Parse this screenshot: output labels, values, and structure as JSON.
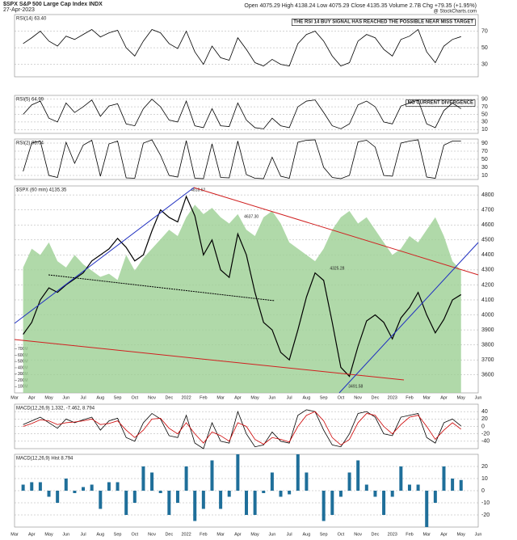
{
  "header": {
    "symbol": "$SPX S&P 500 Large Cap Index INDX",
    "date": "27-Apr-2023",
    "quote": "Open 4075.29 High 4138.24 Low 4075.29 Close 4135.35 Volume 2.7B Chg +79.35 (+1.95%)",
    "watermark": "@ StockCharts.com"
  },
  "x_axis": {
    "labels": [
      "Mar",
      "Apr",
      "May",
      "Jun",
      "Jul",
      "Aug",
      "Sep",
      "Oct",
      "Nov",
      "Dec",
      "2022",
      "Feb",
      "Mar",
      "Apr",
      "May",
      "Jun",
      "Jul",
      "Aug",
      "Sep",
      "Oct",
      "Nov",
      "Dec",
      "2023",
      "Feb",
      "Mar",
      "Apr",
      "May",
      "Jun"
    ]
  },
  "chart_data": [
    {
      "type": "line",
      "title": "RSI(14) 63.40",
      "annotation": "THE RSI 14 BUY SIGNAL HAS REACHED THE POSSIBLE NEAR MISS TARGET",
      "ylim": [
        15,
        90
      ],
      "yticks": [
        30,
        50,
        70
      ],
      "series": [
        {
          "name": "RSI(14)",
          "color": "#000000",
          "values": [
            55,
            62,
            70,
            58,
            52,
            64,
            60,
            66,
            72,
            63,
            68,
            71,
            50,
            40,
            58,
            72,
            68,
            55,
            49,
            70,
            45,
            30,
            52,
            38,
            35,
            62,
            48,
            32,
            28,
            36,
            30,
            28,
            55,
            66,
            70,
            58,
            40,
            28,
            32,
            58,
            66,
            62,
            48,
            40,
            60,
            64,
            72,
            45,
            32,
            52,
            60,
            63.4
          ]
        }
      ]
    },
    {
      "type": "line",
      "title": "RSI(5) 64.99",
      "annotation": "NO CURRENT DIVERGENCE",
      "ylim": [
        0,
        100
      ],
      "yticks": [
        10,
        30,
        50,
        70,
        90
      ],
      "series": [
        {
          "name": "RSI(5)",
          "color": "#000000",
          "values": [
            50,
            75,
            85,
            40,
            30,
            80,
            55,
            70,
            88,
            45,
            72,
            78,
            25,
            20,
            65,
            90,
            70,
            35,
            30,
            85,
            20,
            15,
            65,
            20,
            18,
            80,
            35,
            15,
            12,
            40,
            20,
            15,
            70,
            85,
            88,
            55,
            20,
            12,
            25,
            75,
            85,
            70,
            30,
            25,
            72,
            80,
            88,
            25,
            15,
            60,
            80,
            64.99
          ]
        }
      ]
    },
    {
      "type": "line",
      "title": "RSI(2) 95.04",
      "ylim": [
        0,
        100
      ],
      "yticks": [
        10,
        30,
        50,
        70,
        90
      ],
      "series": [
        {
          "name": "RSI(2)",
          "color": "#000000",
          "values": [
            20,
            90,
            95,
            10,
            5,
            92,
            40,
            85,
            97,
            8,
            88,
            95,
            4,
            3,
            90,
            98,
            60,
            10,
            6,
            96,
            3,
            2,
            88,
            5,
            4,
            95,
            12,
            3,
            2,
            55,
            8,
            3,
            92,
            97,
            98,
            30,
            5,
            2,
            10,
            93,
            97,
            80,
            10,
            8,
            90,
            95,
            98,
            6,
            3,
            85,
            95,
            95.04
          ]
        }
      ]
    },
    {
      "type": "line",
      "title": "$SPX (60 min) 4135.35",
      "ylim": [
        3480,
        4860
      ],
      "yticks": [
        3600,
        3700,
        3800,
        3900,
        4000,
        4100,
        4200,
        4300,
        4400,
        4500,
        4600,
        4700,
        4800
      ],
      "y2lim": [
        0,
        3300
      ],
      "y2ticks": [
        {
          "value": 100,
          "label": "100M"
        },
        {
          "value": 200,
          "label": "200M"
        },
        {
          "value": 300,
          "label": "300M"
        },
        {
          "value": 400,
          "label": "400M"
        },
        {
          "value": 500,
          "label": "500M"
        },
        {
          "value": 600,
          "label": "600M"
        },
        {
          "value": 700,
          "label": "700M"
        }
      ],
      "annotations": [
        "4818.62",
        "4637.30",
        "4325.28",
        "3491.58"
      ],
      "series": [
        {
          "name": "Volume",
          "color": "#9ccf94",
          "axis": "y2",
          "values": [
            2000,
            2300,
            2200,
            2400,
            2100,
            2000,
            2200,
            2050,
            1950,
            1850,
            1900,
            1800,
            2200,
            1950,
            2150,
            2300,
            2450,
            2600,
            2500,
            2800,
            3000,
            2850,
            2950,
            2800,
            2700,
            2850,
            2600,
            2500,
            2800,
            2900,
            2700,
            2400,
            2300,
            2200,
            2100,
            2300,
            2600,
            2800,
            2900,
            2700,
            2800,
            2600,
            2400,
            2200,
            2300,
            2500,
            2400,
            2600,
            2800,
            2500,
            2100,
            1950
          ]
        },
        {
          "name": "$SPX",
          "color": "#000000",
          "values": [
            3870,
            3950,
            4100,
            4180,
            4150,
            4200,
            4240,
            4280,
            4360,
            4400,
            4440,
            4510,
            4450,
            4360,
            4400,
            4560,
            4700,
            4650,
            4620,
            4790,
            4660,
            4400,
            4500,
            4300,
            4250,
            4540,
            4400,
            4150,
            3950,
            3900,
            3750,
            3700,
            3900,
            4120,
            4280,
            4230,
            3950,
            3650,
            3590,
            3790,
            3960,
            4000,
            3950,
            3840,
            3980,
            4050,
            4150,
            4000,
            3880,
            3970,
            4100,
            4135.35
          ]
        }
      ]
    },
    {
      "type": "line",
      "title": "MACD(12,26,9) 1.332, -7.462, 8.794",
      "ylim": [
        -60,
        60
      ],
      "yticks": [
        -40,
        -20,
        0,
        20,
        40
      ],
      "series": [
        {
          "name": "MACD",
          "color": "#000000",
          "values": [
            5,
            15,
            25,
            10,
            -5,
            20,
            10,
            18,
            25,
            -10,
            15,
            22,
            -30,
            -40,
            10,
            35,
            20,
            -25,
            -30,
            30,
            -45,
            -60,
            10,
            -40,
            -45,
            40,
            -20,
            -55,
            -50,
            -15,
            -40,
            -45,
            30,
            45,
            40,
            -10,
            -50,
            -55,
            -20,
            35,
            40,
            25,
            -20,
            -25,
            25,
            30,
            35,
            -30,
            -45,
            10,
            20,
            1.332
          ]
        },
        {
          "name": "Signal",
          "color": "#cc0000",
          "values": [
            0,
            8,
            18,
            15,
            5,
            10,
            12,
            15,
            20,
            5,
            8,
            15,
            -10,
            -30,
            -10,
            20,
            22,
            -5,
            -20,
            10,
            -20,
            -45,
            -15,
            -25,
            -40,
            10,
            0,
            -35,
            -48,
            -30,
            -35,
            -42,
            0,
            30,
            40,
            15,
            -30,
            -50,
            -35,
            10,
            35,
            30,
            0,
            -20,
            5,
            25,
            30,
            0,
            -35,
            -10,
            10,
            -7.462
          ]
        }
      ]
    },
    {
      "type": "bar",
      "title": "MACD(12,26,9) Hist 8.794",
      "ylim": [
        -30,
        30
      ],
      "yticks": [
        -20,
        -10,
        0,
        10,
        20
      ],
      "series": [
        {
          "name": "Hist",
          "color": "#1f6f9a",
          "values": [
            5,
            7,
            7,
            -5,
            -10,
            10,
            -2,
            3,
            5,
            -15,
            7,
            7,
            -20,
            -10,
            20,
            15,
            -2,
            -20,
            -10,
            20,
            -25,
            -15,
            25,
            -15,
            -5,
            30,
            -20,
            -20,
            -2,
            15,
            -5,
            -3,
            30,
            15,
            0,
            -25,
            -20,
            -5,
            15,
            25,
            5,
            -5,
            -20,
            -5,
            20,
            5,
            5,
            -30,
            -10,
            20,
            10,
            8.794
          ]
        }
      ]
    }
  ]
}
